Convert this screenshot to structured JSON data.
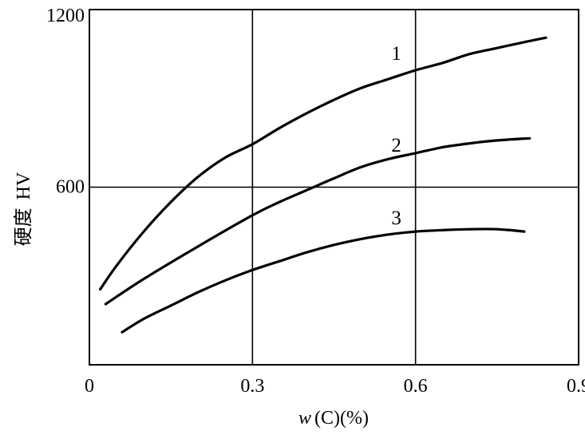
{
  "chart_data": {
    "type": "line",
    "xlabel_parts": {
      "var": "w",
      "rest": "(C)(%)"
    },
    "ylabel_parts": {
      "cn": "硬度",
      "unit": "HV"
    },
    "xlim": [
      0,
      0.9
    ],
    "ylim": [
      0,
      1200
    ],
    "xticks": [
      {
        "value": 0,
        "label": "0"
      },
      {
        "value": 0.3,
        "label": "0.3"
      },
      {
        "value": 0.6,
        "label": "0.6"
      },
      {
        "value": 0.9,
        "label": "0.9"
      }
    ],
    "yticks": [
      {
        "value": 600,
        "label": "600"
      },
      {
        "value": 1200,
        "label": "1200"
      }
    ],
    "grid": {
      "x": [
        0.3,
        0.6
      ],
      "y": [
        600
      ]
    },
    "series": [
      {
        "name": "1",
        "label_at": {
          "x": 0.55,
          "y": 1030
        },
        "points": [
          [
            0.02,
            255
          ],
          [
            0.05,
            335
          ],
          [
            0.1,
            450
          ],
          [
            0.15,
            550
          ],
          [
            0.2,
            635
          ],
          [
            0.25,
            700
          ],
          [
            0.3,
            745
          ],
          [
            0.35,
            800
          ],
          [
            0.4,
            850
          ],
          [
            0.45,
            895
          ],
          [
            0.5,
            935
          ],
          [
            0.55,
            965
          ],
          [
            0.6,
            995
          ],
          [
            0.65,
            1020
          ],
          [
            0.7,
            1050
          ],
          [
            0.75,
            1070
          ],
          [
            0.8,
            1090
          ],
          [
            0.84,
            1105
          ]
        ]
      },
      {
        "name": "2",
        "label_at": {
          "x": 0.55,
          "y": 720
        },
        "points": [
          [
            0.03,
            205
          ],
          [
            0.1,
            290
          ],
          [
            0.2,
            400
          ],
          [
            0.3,
            505
          ],
          [
            0.35,
            550
          ],
          [
            0.4,
            590
          ],
          [
            0.45,
            630
          ],
          [
            0.5,
            668
          ],
          [
            0.55,
            695
          ],
          [
            0.6,
            715
          ],
          [
            0.65,
            735
          ],
          [
            0.7,
            748
          ],
          [
            0.75,
            758
          ],
          [
            0.81,
            765
          ]
        ]
      },
      {
        "name": "3",
        "label_at": {
          "x": 0.55,
          "y": 475
        },
        "points": [
          [
            0.06,
            110
          ],
          [
            0.1,
            155
          ],
          [
            0.15,
            200
          ],
          [
            0.2,
            245
          ],
          [
            0.25,
            285
          ],
          [
            0.3,
            320
          ],
          [
            0.35,
            350
          ],
          [
            0.4,
            380
          ],
          [
            0.45,
            405
          ],
          [
            0.5,
            425
          ],
          [
            0.55,
            440
          ],
          [
            0.6,
            450
          ],
          [
            0.65,
            455
          ],
          [
            0.7,
            458
          ],
          [
            0.75,
            458
          ],
          [
            0.8,
            450
          ]
        ]
      }
    ]
  }
}
